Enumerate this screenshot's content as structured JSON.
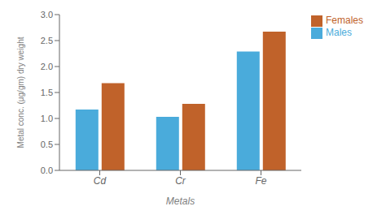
{
  "chart_data": {
    "type": "bar",
    "categories": [
      "Cd",
      "Cr",
      "Fe"
    ],
    "series": [
      {
        "name": "Males",
        "color": "#4AABDB",
        "values": [
          1.17,
          1.03,
          2.29
        ]
      },
      {
        "name": "Females",
        "color": "#C0622A",
        "values": [
          1.68,
          1.28,
          2.67
        ]
      }
    ],
    "xlabel": "Metals",
    "ylabel": "Metal conc. (μg/gm) dry weight",
    "ylim": [
      0,
      3.0
    ],
    "yticks": [
      {
        "value": 0,
        "label": "0.0"
      },
      0.5,
      {
        "value": 1,
        "label": "1.0"
      },
      1.5,
      {
        "value": 2,
        "label": "2.0"
      },
      2.5,
      {
        "value": 3,
        "label": "3.0"
      }
    ],
    "grid": false,
    "legend": "right"
  }
}
